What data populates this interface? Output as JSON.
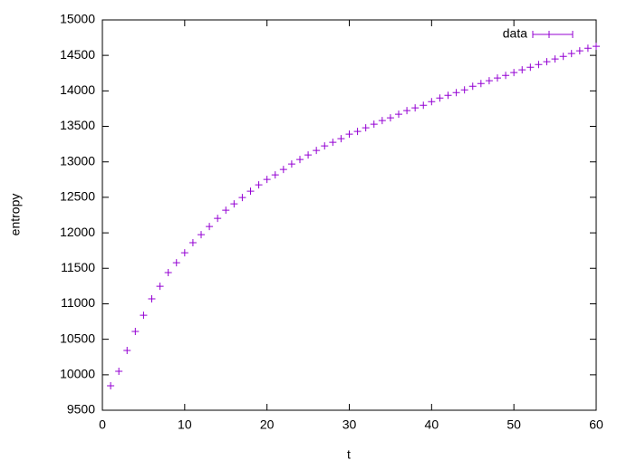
{
  "chart_data": {
    "type": "scatter",
    "x_label": "t",
    "y_label": "entropy",
    "series": [
      {
        "name": "data",
        "color": "#9400d3",
        "x": [
          1,
          2,
          3,
          4,
          5,
          6,
          7,
          8,
          9,
          10,
          11,
          12,
          13,
          14,
          15,
          16,
          17,
          18,
          19,
          20,
          21,
          22,
          23,
          24,
          25,
          26,
          27,
          28,
          29,
          30,
          31,
          32,
          33,
          34,
          35,
          36,
          37,
          38,
          39,
          40,
          41,
          42,
          43,
          44,
          45,
          46,
          47,
          48,
          49,
          50,
          51,
          52,
          53,
          54,
          55,
          56,
          57,
          58,
          59,
          60
        ],
        "values": [
          9844,
          10048,
          10342,
          10610,
          10839,
          11069,
          11247,
          11439,
          11579,
          11719,
          11860,
          11974,
          12089,
          12204,
          12319,
          12408,
          12497,
          12587,
          12676,
          12753,
          12816,
          12893,
          12969,
          13033,
          13097,
          13161,
          13224,
          13276,
          13327,
          13390,
          13429,
          13480,
          13531,
          13582,
          13620,
          13671,
          13722,
          13760,
          13798,
          13849,
          13900,
          13938,
          13976,
          14015,
          14066,
          14104,
          14143,
          14181,
          14219,
          14258,
          14296,
          14334,
          14372,
          14411,
          14449,
          14487,
          14526,
          14564,
          14602,
          14628
        ]
      }
    ],
    "xlim": [
      0,
      60
    ],
    "xticks": [
      0,
      10,
      20,
      30,
      40,
      50,
      60
    ],
    "ylim": [
      9500,
      15000
    ],
    "yticks": [
      9500,
      10000,
      10500,
      11000,
      11500,
      12000,
      12500,
      13000,
      13500,
      14000,
      14500,
      15000
    ],
    "grid": false,
    "legend": "top-right"
  }
}
